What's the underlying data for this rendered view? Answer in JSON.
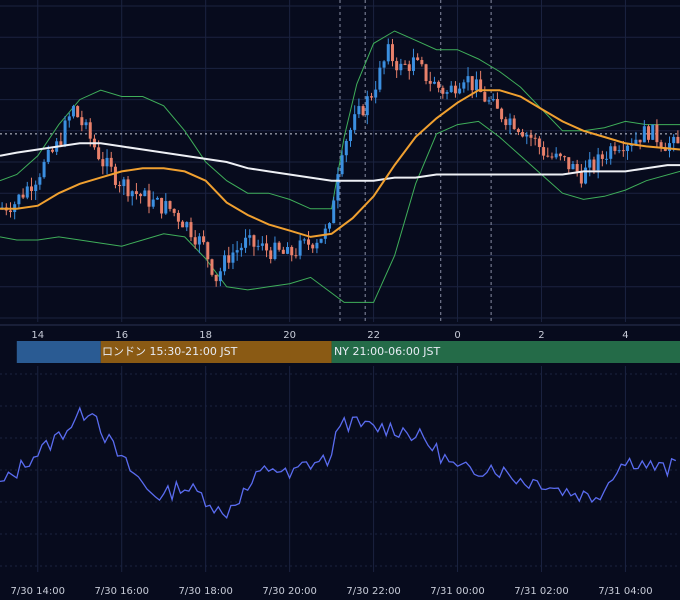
{
  "colors": {
    "background": "#070b1d",
    "grid": "#1b2340",
    "candle_up": "#3b8fe0",
    "candle_down": "#e8806a",
    "bollinger": "#3fae5a",
    "ma_fast": "#f0a030",
    "ma_slow": "#eef0f5",
    "oscillator": "#5a6cf0",
    "session_tokyo": "#2a5b93",
    "session_london": "#8a5a14",
    "session_ny": "#246b48",
    "axis_text": "#c8ccd8"
  },
  "sessions": [
    {
      "label": "",
      "color": "#2a5b93",
      "start": 13.5,
      "end": 15.5
    },
    {
      "label": "ロンドン 15:30-21:00 JST",
      "color": "#8a5a14",
      "start": 15.5,
      "end": 21.0
    },
    {
      "label": "NY 21:00-06:00 JST",
      "color": "#246b48",
      "start": 21.0,
      "end": 30.0
    }
  ],
  "chart_data": [
    {
      "type": "candlestick",
      "title": "",
      "x_tick_labels": [
        "14",
        "16",
        "18",
        "20",
        "22",
        "0",
        "2",
        "4"
      ],
      "x_tick_hours": [
        14,
        16,
        18,
        20,
        22,
        24,
        26,
        28
      ],
      "x_range_hours": [
        13.1,
        29.3
      ],
      "y_range": [
        0,
        100
      ],
      "grid": true,
      "event_lines_hours": [
        21.2,
        21.8,
        23.6,
        24.8
      ],
      "reference_level": 59,
      "candle_close_anchors": [
        [
          13.1,
          35
        ],
        [
          13.5,
          37
        ],
        [
          14.0,
          45
        ],
        [
          14.5,
          55
        ],
        [
          14.9,
          67
        ],
        [
          15.2,
          60
        ],
        [
          15.6,
          50
        ],
        [
          16.0,
          44
        ],
        [
          16.4,
          40
        ],
        [
          16.8,
          37
        ],
        [
          17.2,
          35
        ],
        [
          17.6,
          30
        ],
        [
          18.0,
          23
        ],
        [
          18.3,
          13
        ],
        [
          18.6,
          20
        ],
        [
          19.0,
          24
        ],
        [
          19.5,
          22
        ],
        [
          20.0,
          20
        ],
        [
          20.5,
          24
        ],
        [
          21.0,
          28
        ],
        [
          21.15,
          45
        ],
        [
          21.3,
          55
        ],
        [
          21.6,
          63
        ],
        [
          22.0,
          72
        ],
        [
          22.4,
          85
        ],
        [
          22.7,
          80
        ],
        [
          23.0,
          82
        ],
        [
          23.4,
          76
        ],
        [
          23.8,
          72
        ],
        [
          24.2,
          78
        ],
        [
          24.6,
          72
        ],
        [
          25.0,
          66
        ],
        [
          25.4,
          63
        ],
        [
          25.8,
          58
        ],
        [
          26.2,
          52
        ],
        [
          26.6,
          50
        ],
        [
          27.0,
          46
        ],
        [
          27.4,
          50
        ],
        [
          27.8,
          56
        ],
        [
          28.2,
          57
        ],
        [
          28.6,
          60
        ],
        [
          29.0,
          56
        ],
        [
          29.3,
          55
        ]
      ],
      "moving_average_fast": [
        [
          13.1,
          35
        ],
        [
          13.5,
          35
        ],
        [
          14.0,
          36
        ],
        [
          14.5,
          40
        ],
        [
          15.0,
          43
        ],
        [
          15.5,
          45
        ],
        [
          16.0,
          47
        ],
        [
          16.5,
          48
        ],
        [
          17.0,
          48
        ],
        [
          17.5,
          47
        ],
        [
          18.0,
          44
        ],
        [
          18.5,
          37
        ],
        [
          19.0,
          33
        ],
        [
          19.5,
          30
        ],
        [
          20.0,
          28
        ],
        [
          20.5,
          26
        ],
        [
          21.0,
          27
        ],
        [
          21.5,
          32
        ],
        [
          22.0,
          39
        ],
        [
          22.5,
          49
        ],
        [
          23.0,
          58
        ],
        [
          23.5,
          64
        ],
        [
          24.0,
          69
        ],
        [
          24.5,
          73
        ],
        [
          25.0,
          73
        ],
        [
          25.5,
          71
        ],
        [
          26.0,
          67
        ],
        [
          26.5,
          63
        ],
        [
          27.0,
          60
        ],
        [
          27.5,
          58
        ],
        [
          28.0,
          56
        ],
        [
          28.5,
          55
        ],
        [
          29.3,
          54
        ]
      ],
      "moving_average_slow": [
        [
          13.1,
          52
        ],
        [
          13.5,
          53
        ],
        [
          14.0,
          54
        ],
        [
          14.5,
          55
        ],
        [
          15.0,
          56
        ],
        [
          15.5,
          56
        ],
        [
          16.0,
          55
        ],
        [
          16.5,
          54
        ],
        [
          17.0,
          53
        ],
        [
          17.5,
          52
        ],
        [
          18.0,
          51
        ],
        [
          18.5,
          50
        ],
        [
          19.0,
          48
        ],
        [
          19.5,
          47
        ],
        [
          20.0,
          46
        ],
        [
          20.5,
          45
        ],
        [
          21.0,
          44
        ],
        [
          21.5,
          44
        ],
        [
          22.0,
          44
        ],
        [
          22.5,
          45
        ],
        [
          23.0,
          45
        ],
        [
          23.5,
          46
        ],
        [
          24.0,
          46
        ],
        [
          24.5,
          46
        ],
        [
          25.0,
          46
        ],
        [
          25.5,
          46
        ],
        [
          26.0,
          46
        ],
        [
          26.5,
          46
        ],
        [
          27.0,
          47
        ],
        [
          27.5,
          47
        ],
        [
          28.0,
          47
        ],
        [
          28.5,
          48
        ],
        [
          29.0,
          49
        ],
        [
          29.3,
          49
        ]
      ],
      "bollinger_upper": [
        [
          13.1,
          44
        ],
        [
          13.5,
          46
        ],
        [
          14.0,
          52
        ],
        [
          14.5,
          62
        ],
        [
          15.0,
          70
        ],
        [
          15.5,
          73
        ],
        [
          16.0,
          71
        ],
        [
          16.5,
          71
        ],
        [
          17.0,
          68
        ],
        [
          17.5,
          60
        ],
        [
          18.0,
          50
        ],
        [
          18.5,
          44
        ],
        [
          19.0,
          40
        ],
        [
          19.5,
          40
        ],
        [
          20.0,
          38
        ],
        [
          20.5,
          35
        ],
        [
          21.0,
          35
        ],
        [
          21.3,
          58
        ],
        [
          21.6,
          75
        ],
        [
          22.0,
          88
        ],
        [
          22.5,
          92
        ],
        [
          23.0,
          89
        ],
        [
          23.5,
          86
        ],
        [
          24.0,
          86
        ],
        [
          24.5,
          83
        ],
        [
          25.0,
          79
        ],
        [
          25.5,
          74
        ],
        [
          26.0,
          67
        ],
        [
          26.5,
          60
        ],
        [
          27.0,
          60
        ],
        [
          27.5,
          61
        ],
        [
          28.0,
          63
        ],
        [
          28.5,
          62
        ],
        [
          29.3,
          62
        ]
      ],
      "bollinger_lower": [
        [
          13.1,
          26
        ],
        [
          13.5,
          25
        ],
        [
          14.0,
          25
        ],
        [
          14.5,
          26
        ],
        [
          15.0,
          25
        ],
        [
          15.5,
          24
        ],
        [
          16.0,
          23
        ],
        [
          16.5,
          25
        ],
        [
          17.0,
          27
        ],
        [
          17.5,
          26
        ],
        [
          18.0,
          19
        ],
        [
          18.5,
          10
        ],
        [
          19.0,
          9
        ],
        [
          19.5,
          10
        ],
        [
          20.0,
          11
        ],
        [
          20.5,
          13
        ],
        [
          21.0,
          8
        ],
        [
          21.3,
          5
        ],
        [
          21.6,
          5
        ],
        [
          22.0,
          5
        ],
        [
          22.5,
          20
        ],
        [
          23.0,
          43
        ],
        [
          23.5,
          59
        ],
        [
          24.0,
          62
        ],
        [
          24.5,
          63
        ],
        [
          25.0,
          58
        ],
        [
          25.5,
          52
        ],
        [
          26.0,
          46
        ],
        [
          26.5,
          40
        ],
        [
          27.0,
          38
        ],
        [
          27.5,
          39
        ],
        [
          28.0,
          41
        ],
        [
          28.5,
          44
        ],
        [
          29.3,
          47
        ]
      ]
    },
    {
      "type": "line",
      "title": "",
      "x_tick_labels": [
        "7/30 14:00",
        "7/30 16:00",
        "7/30 18:00",
        "7/30 20:00",
        "7/30 22:00",
        "7/31 00:00",
        "7/31 02:00",
        "7/31 04:00"
      ],
      "x_tick_hours": [
        14,
        16,
        18,
        20,
        22,
        24,
        26,
        28
      ],
      "x_range_hours": [
        13.1,
        29.3
      ],
      "y_range": [
        0,
        100
      ],
      "grid": true,
      "series": [
        {
          "values": [
            [
              13.1,
              42
            ],
            [
              13.4,
              47
            ],
            [
              13.8,
              56
            ],
            [
              14.2,
              62
            ],
            [
              14.6,
              70
            ],
            [
              15.0,
              78
            ],
            [
              15.3,
              83
            ],
            [
              15.6,
              68
            ],
            [
              16.0,
              55
            ],
            [
              16.3,
              48
            ],
            [
              16.6,
              40
            ],
            [
              17.0,
              36
            ],
            [
              17.4,
              42
            ],
            [
              17.8,
              38
            ],
            [
              18.1,
              34
            ],
            [
              18.4,
              26
            ],
            [
              18.7,
              34
            ],
            [
              19.0,
              40
            ],
            [
              19.3,
              48
            ],
            [
              19.6,
              52
            ],
            [
              20.0,
              46
            ],
            [
              20.3,
              52
            ],
            [
              20.6,
              54
            ],
            [
              21.0,
              56
            ],
            [
              21.2,
              76
            ],
            [
              21.5,
              74
            ],
            [
              22.0,
              72
            ],
            [
              22.4,
              72
            ],
            [
              22.8,
              70
            ],
            [
              23.2,
              66
            ],
            [
              23.6,
              58
            ],
            [
              24.0,
              50
            ],
            [
              24.4,
              50
            ],
            [
              24.8,
              52
            ],
            [
              25.2,
              48
            ],
            [
              25.6,
              44
            ],
            [
              26.0,
              44
            ],
            [
              26.4,
              40
            ],
            [
              26.8,
              38
            ],
            [
              27.2,
              36
            ],
            [
              27.5,
              40
            ],
            [
              27.8,
              52
            ],
            [
              28.2,
              55
            ],
            [
              28.6,
              52
            ],
            [
              29.0,
              50
            ],
            [
              29.3,
              55
            ]
          ]
        }
      ]
    }
  ]
}
